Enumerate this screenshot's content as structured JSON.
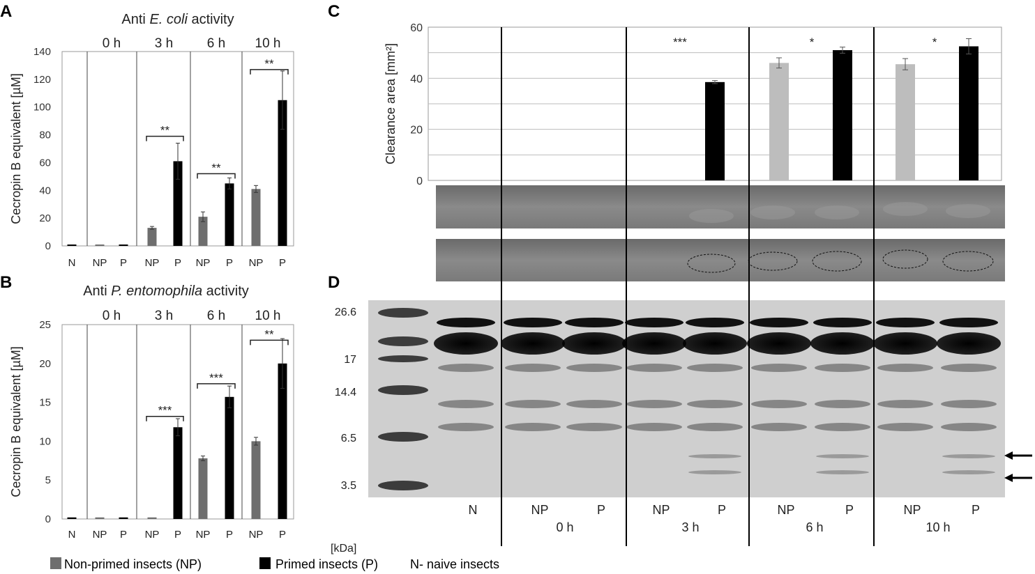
{
  "panels": {
    "a": "A",
    "b": "B",
    "c": "C",
    "d": "D"
  },
  "chart_data": [
    {
      "type": "bar",
      "title_prefix": "Anti ",
      "title_italic": "E. coli",
      "title_suffix": " activity",
      "ylabel": "Cecropin B equivalent [µM]",
      "ylim": [
        0,
        140
      ],
      "yticks": [
        0,
        20,
        40,
        60,
        80,
        100,
        120,
        140
      ],
      "time_labels": [
        "0 h",
        "3 h",
        "6 h",
        "10 h"
      ],
      "categories": [
        "N",
        "NP",
        "P",
        "NP",
        "P",
        "NP",
        "P",
        "NP",
        "P"
      ],
      "values": [
        1,
        1,
        1,
        13,
        61,
        21,
        45,
        41,
        105
      ],
      "errors": [
        0,
        0,
        0,
        1,
        13,
        3.5,
        4,
        2.5,
        21
      ],
      "groups": [
        "N",
        "NP",
        "P",
        "NP",
        "P",
        "NP",
        "P",
        "NP",
        "P"
      ],
      "significance": [
        {
          "label": "**",
          "from": 3,
          "to": 4,
          "y": 79
        },
        {
          "label": "**",
          "from": 5,
          "to": 6,
          "y": 52
        },
        {
          "label": "**",
          "from": 7,
          "to": 8,
          "y": 127
        }
      ]
    },
    {
      "type": "bar",
      "title_prefix": "Anti ",
      "title_italic": "P. entomophila",
      "title_suffix": " activity",
      "ylabel": "Cecropin B equivalent [µM]",
      "ylim": [
        0,
        25
      ],
      "yticks": [
        0,
        5,
        10,
        15,
        20,
        25
      ],
      "time_labels": [
        "0 h",
        "3 h",
        "6 h",
        "10 h"
      ],
      "categories": [
        "N",
        "NP",
        "P",
        "NP",
        "P",
        "NP",
        "P",
        "NP",
        "P"
      ],
      "values": [
        0.2,
        0.2,
        0.2,
        0.2,
        11.8,
        7.8,
        15.7,
        10.0,
        20.0
      ],
      "errors": [
        0,
        0,
        0,
        0,
        1.1,
        0.3,
        1.4,
        0.5,
        3.2
      ],
      "groups": [
        "N",
        "NP",
        "P",
        "NP",
        "P",
        "NP",
        "P",
        "NP",
        "P"
      ],
      "significance": [
        {
          "label": "***",
          "from": 3,
          "to": 4,
          "y": 13.2
        },
        {
          "label": "***",
          "from": 5,
          "to": 6,
          "y": 17.4
        },
        {
          "label": "**",
          "from": 7,
          "to": 8,
          "y": 23
        }
      ]
    },
    {
      "type": "bar",
      "ylabel": "Clearance area [mm²]",
      "ylim": [
        0,
        60
      ],
      "yticks": [
        0,
        20,
        40,
        60
      ],
      "categories": [
        "N",
        "NP",
        "P",
        "NP",
        "P",
        "NP",
        "P",
        "NP",
        "P"
      ],
      "values": [
        0,
        0,
        0,
        0,
        38.5,
        46,
        51,
        45.5,
        52.5
      ],
      "errors": [
        0,
        0,
        0,
        0,
        0.6,
        2,
        1.2,
        2.2,
        3
      ],
      "groups": [
        "N",
        "NP",
        "P",
        "NP",
        "P",
        "NP",
        "P",
        "NP",
        "P"
      ],
      "significance": [
        {
          "label": "***",
          "group": 1
        },
        {
          "label": "*",
          "group": 2
        },
        {
          "label": "*",
          "group": 3
        }
      ]
    }
  ],
  "gel": {
    "markers": [
      "26.6",
      "17",
      "14.4",
      "6.5",
      "3.5"
    ],
    "unit": "[kDa]",
    "lane_labels": [
      "N",
      "NP",
      "P",
      "NP",
      "P",
      "NP",
      "P",
      "NP",
      "P"
    ],
    "time_labels": [
      "0 h",
      "3 h",
      "6 h",
      "10 h"
    ]
  },
  "legend": {
    "np_label": "Non-primed insects (NP)",
    "p_label": "Primed insects (P)",
    "n_label": "N- naive insects",
    "np_color": "#6e6e6e",
    "p_color": "#000000"
  },
  "colors": {
    "N": "#000000",
    "NP": "#6e6e6e",
    "P": "#000000",
    "NP_c": "#bdbdbd"
  }
}
